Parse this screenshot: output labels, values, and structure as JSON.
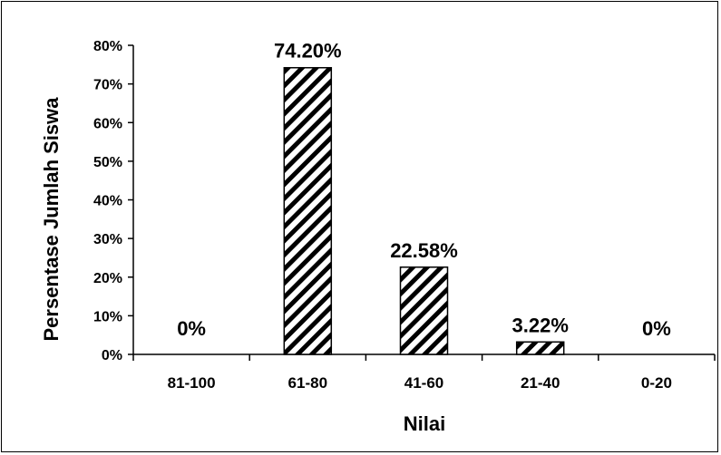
{
  "chart_data": {
    "type": "bar",
    "categories": [
      "81-100",
      "61-80",
      "41-60",
      "21-40",
      "0-20"
    ],
    "values": [
      0,
      74.2,
      22.58,
      3.22,
      0
    ],
    "data_labels": [
      "0%",
      "74.20%",
      "22.58%",
      "3.22%",
      "0%"
    ],
    "title": "",
    "xlabel": "Nilai",
    "ylabel": "Persentase Jumlah Siswa",
    "ylim": [
      0,
      80
    ],
    "yticks": [
      "0%",
      "10%",
      "20%",
      "30%",
      "40%",
      "50%",
      "60%",
      "70%",
      "80%"
    ],
    "grid": false,
    "legend": "none",
    "bar_fill": "diagonal-hatch",
    "colors": {
      "bar_stroke": "#000000",
      "hatch": "#000000",
      "background": "#ffffff"
    }
  }
}
